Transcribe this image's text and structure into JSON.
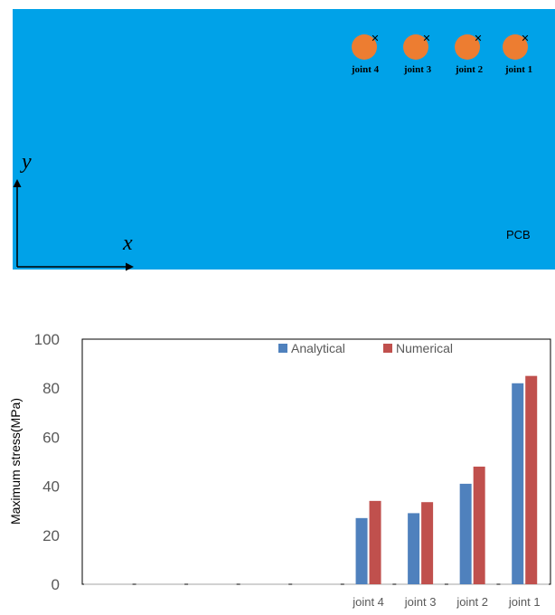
{
  "diagram": {
    "board_label": "PCB",
    "axis_x": "x",
    "axis_y": "y",
    "joints": [
      {
        "label": "joint 4"
      },
      {
        "label": "joint 3"
      },
      {
        "label": "joint 2"
      },
      {
        "label": "joint 1"
      }
    ],
    "colors": {
      "board": "#00a2e8",
      "joint": "#ed7d31",
      "marker": "#000000"
    }
  },
  "chart_data": {
    "type": "bar",
    "categories": [
      "",
      "",
      "",
      "",
      "",
      "joint 4",
      "joint 3",
      "joint 2",
      "joint 1"
    ],
    "series": [
      {
        "name": "Analytical",
        "color": "#4f81bd",
        "values": [
          null,
          null,
          null,
          null,
          null,
          27,
          29,
          41,
          82
        ]
      },
      {
        "name": "Numerical",
        "color": "#c0504d",
        "values": [
          null,
          null,
          null,
          null,
          null,
          34,
          33.5,
          48,
          85
        ]
      }
    ],
    "title": "",
    "xlabel": "",
    "ylabel": "Maximum stress(MPa)",
    "ylim": [
      0,
      100
    ],
    "yticks": [
      0,
      20,
      40,
      60,
      80,
      100
    ],
    "legend_position": "top-right",
    "grid": false
  }
}
